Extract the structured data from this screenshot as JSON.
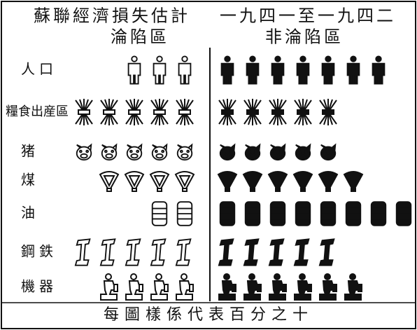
{
  "chart_data": {
    "type": "pictogram",
    "title": "蘇聯經濟損失估計",
    "subtitle": "一九四一至一九四二",
    "categories": [
      "人口",
      "糧食出産區",
      "猪",
      "煤",
      "油",
      "鋼鉄",
      "機器"
    ],
    "series": [
      {
        "name": "淪陷區",
        "color": "#ffffff",
        "values": [
          3,
          5,
          5,
          4,
          2,
          5,
          4
        ]
      },
      {
        "name": "非淪陷區",
        "color": "#111111",
        "values": [
          7,
          5,
          5,
          6,
          8,
          5,
          6
        ]
      }
    ],
    "footnote": "每圖樣係代表百分之十"
  }
}
